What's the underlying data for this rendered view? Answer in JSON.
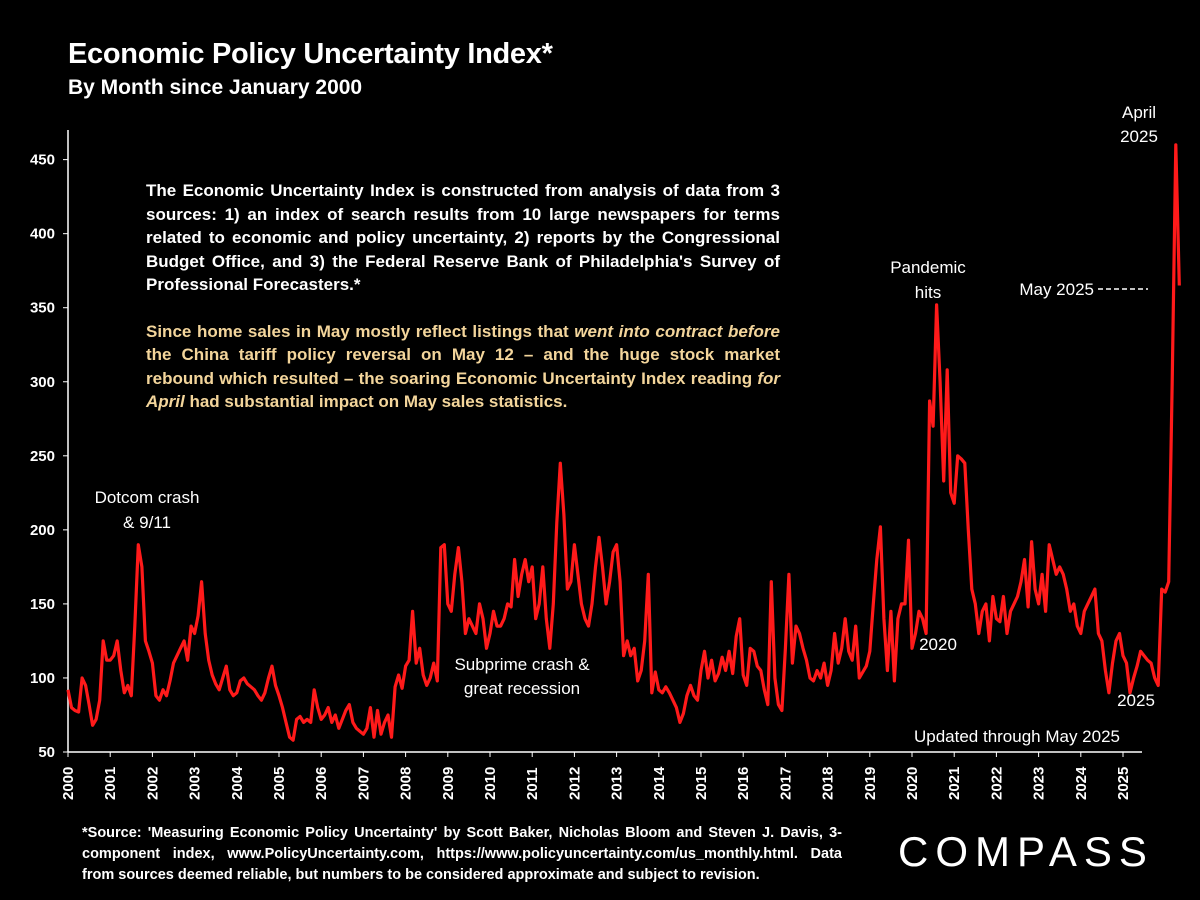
{
  "title": "Economic Policy Uncertainty Index*",
  "subtitle": "By Month since January 2000",
  "info": {
    "paragraph1": "The Economic Uncertainty Index is constructed from analysis of data from 3 sources:  1) an index of search results from 10 large newspapers for terms related to economic and policy uncertainty, 2) reports by the Congressional Budget Office, and 3) the Federal Reserve Bank of Philadelphia's Survey of Professional Forecasters.*",
    "paragraph2_parts": [
      {
        "text": "Since home sales in May mostly reflect listings that ",
        "italic": false
      },
      {
        "text": "went into contract before",
        "italic": true
      },
      {
        "text": " the China tariff policy reversal on May 12 – and the huge stock market rebound which resulted – the soaring Economic Uncertainty Index  reading ",
        "italic": false
      },
      {
        "text": "for April",
        "italic": true
      },
      {
        "text": " had substantial impact on May sales statistics.",
        "italic": false
      }
    ]
  },
  "annotations": {
    "dotcom": [
      "Dotcom crash",
      "& 9/11"
    ],
    "subprime": [
      "Subprime crash &",
      "great recession"
    ],
    "pandemic": [
      "Pandemic",
      "hits"
    ],
    "year2020": "2020",
    "year2025": "2025",
    "april2025": [
      "April",
      "2025"
    ],
    "may2025": "May 2025",
    "updated": "Updated through May 2025"
  },
  "footer": "*Source: 'Measuring Economic Policy Uncertainty' by Scott Baker, Nicholas Bloom and Steven J. Davis, 3-component index, www.PolicyUncertainty.com, https://www.policyuncertainty.com/us_monthly.html. Data from sources deemed reliable, but numbers to be considered approximate and subject to revision.",
  "logo": "COMPASS",
  "colors": {
    "background": "#000000",
    "line": "#ff1a1a",
    "text": "#ffffff",
    "highlight_text": "#f3d59b"
  },
  "chart_data": {
    "type": "line",
    "title": "Economic Policy Uncertainty Index*",
    "subtitle": "By Month since January 2000",
    "xlabel": "",
    "ylabel": "",
    "ylim": [
      50,
      470
    ],
    "yticks": [
      50,
      100,
      150,
      200,
      250,
      300,
      350,
      400,
      450
    ],
    "xticks": [
      "2000",
      "2001",
      "2002",
      "2003",
      "2004",
      "2005",
      "2006",
      "2007",
      "2008",
      "2009",
      "2010",
      "2011",
      "2012",
      "2013",
      "2014",
      "2015",
      "2016",
      "2017",
      "2018",
      "2019",
      "2020",
      "2021",
      "2022",
      "2023",
      "2024",
      "2025"
    ],
    "grid": false,
    "series": [
      {
        "start": "2000-01",
        "frequency": "monthly",
        "values": [
          92,
          80,
          78,
          77,
          100,
          95,
          82,
          68,
          72,
          85,
          125,
          112,
          112,
          115,
          125,
          105,
          90,
          95,
          88,
          135,
          190,
          175,
          125,
          118,
          110,
          88,
          85,
          92,
          88,
          98,
          110,
          115,
          120,
          125,
          112,
          135,
          130,
          142,
          165,
          130,
          112,
          102,
          96,
          92,
          100,
          108,
          92,
          88,
          90,
          98,
          100,
          96,
          94,
          92,
          88,
          85,
          90,
          100,
          108,
          95,
          88,
          80,
          70,
          60,
          58,
          72,
          74,
          70,
          72,
          70,
          92,
          80,
          72,
          75,
          80,
          70,
          75,
          66,
          72,
          78,
          82,
          70,
          66,
          64,
          62,
          66,
          80,
          60,
          78,
          62,
          70,
          75,
          60,
          94,
          102,
          93,
          108,
          112,
          145,
          110,
          120,
          102,
          95,
          100,
          110,
          98,
          188,
          190,
          150,
          145,
          170,
          188,
          165,
          130,
          140,
          135,
          130,
          150,
          140,
          120,
          130,
          145,
          135,
          135,
          140,
          150,
          148,
          180,
          155,
          170,
          180,
          165,
          175,
          140,
          150,
          175,
          140,
          120,
          150,
          205,
          245,
          210,
          160,
          165,
          190,
          170,
          150,
          140,
          135,
          150,
          175,
          195,
          175,
          150,
          165,
          185,
          190,
          165,
          115,
          125,
          115,
          120,
          98,
          105,
          125,
          170,
          90,
          104,
          92,
          90,
          94,
          90,
          85,
          80,
          70,
          76,
          88,
          95,
          88,
          85,
          105,
          118,
          100,
          112,
          98,
          103,
          114,
          105,
          118,
          103,
          128,
          140,
          102,
          95,
          120,
          118,
          108,
          105,
          92,
          82,
          165,
          100,
          82,
          78,
          120,
          170,
          110,
          135,
          130,
          120,
          112,
          100,
          98,
          105,
          100,
          110,
          95,
          105,
          130,
          110,
          120,
          140,
          118,
          112,
          135,
          100,
          104,
          108,
          118,
          150,
          180,
          202,
          140,
          105,
          145,
          98,
          140,
          150,
          150,
          193,
          120,
          130,
          145,
          140,
          130,
          287,
          270,
          352,
          300,
          233,
          308,
          225,
          218,
          250,
          248,
          245,
          200,
          160,
          150,
          130,
          145,
          150,
          125,
          155,
          140,
          138,
          155,
          130,
          145,
          150,
          155,
          165,
          180,
          148,
          192,
          160,
          150,
          170,
          145,
          190,
          180,
          170,
          175,
          170,
          160,
          145,
          150,
          135,
          130,
          145,
          150,
          155,
          160,
          130,
          125,
          105,
          90,
          110,
          125,
          130,
          115,
          110,
          90,
          100,
          108,
          118,
          115,
          112,
          110,
          100,
          95,
          160,
          158,
          165,
          300,
          460,
          365
        ]
      }
    ]
  }
}
